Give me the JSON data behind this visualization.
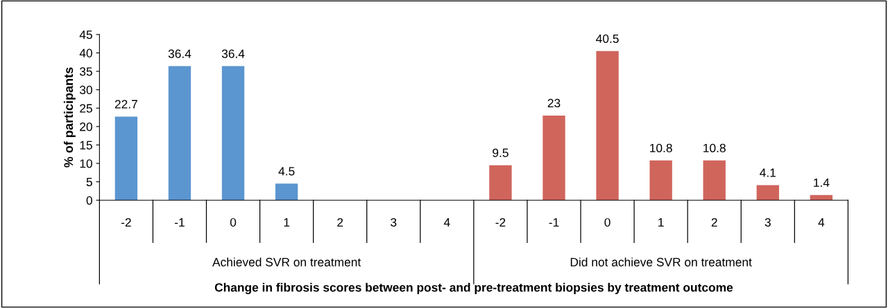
{
  "chart_data": {
    "type": "bar",
    "categories": [
      "-2",
      "-1",
      "0",
      "1",
      "2",
      "3",
      "4",
      "-2",
      "-1",
      "0",
      "1",
      "2",
      "3",
      "4"
    ],
    "values": [
      22.7,
      36.4,
      36.4,
      4.5,
      0,
      0,
      0,
      9.5,
      23,
      40.5,
      10.8,
      10.8,
      4.1,
      1.4
    ],
    "value_labels": [
      "22.7",
      "36.4",
      "36.4",
      "4.5",
      null,
      null,
      null,
      "9.5",
      "23",
      "40.5",
      "10.8",
      "10.8",
      "4.1",
      "1.4"
    ],
    "colors": [
      "#5b96d0",
      "#5b96d0",
      "#5b96d0",
      "#5b96d0",
      "#5b96d0",
      "#5b96d0",
      "#5b96d0",
      "#d0655c",
      "#d0655c",
      "#d0655c",
      "#d0655c",
      "#d0655c",
      "#d0655c",
      "#d0655c"
    ],
    "ylabel": "% of participants",
    "xlabel": "Change in fibrosis scores between post- and pre-treatment biopsies by treatment outcome",
    "annotations": [
      "Achieved SVR on treatment",
      "Did not achieve SVR on treatment"
    ],
    "ylim": [
      0,
      45
    ],
    "yticks": [
      0,
      5,
      10,
      15,
      20,
      25,
      30,
      35,
      40,
      45
    ],
    "grid": false,
    "legend": false
  }
}
